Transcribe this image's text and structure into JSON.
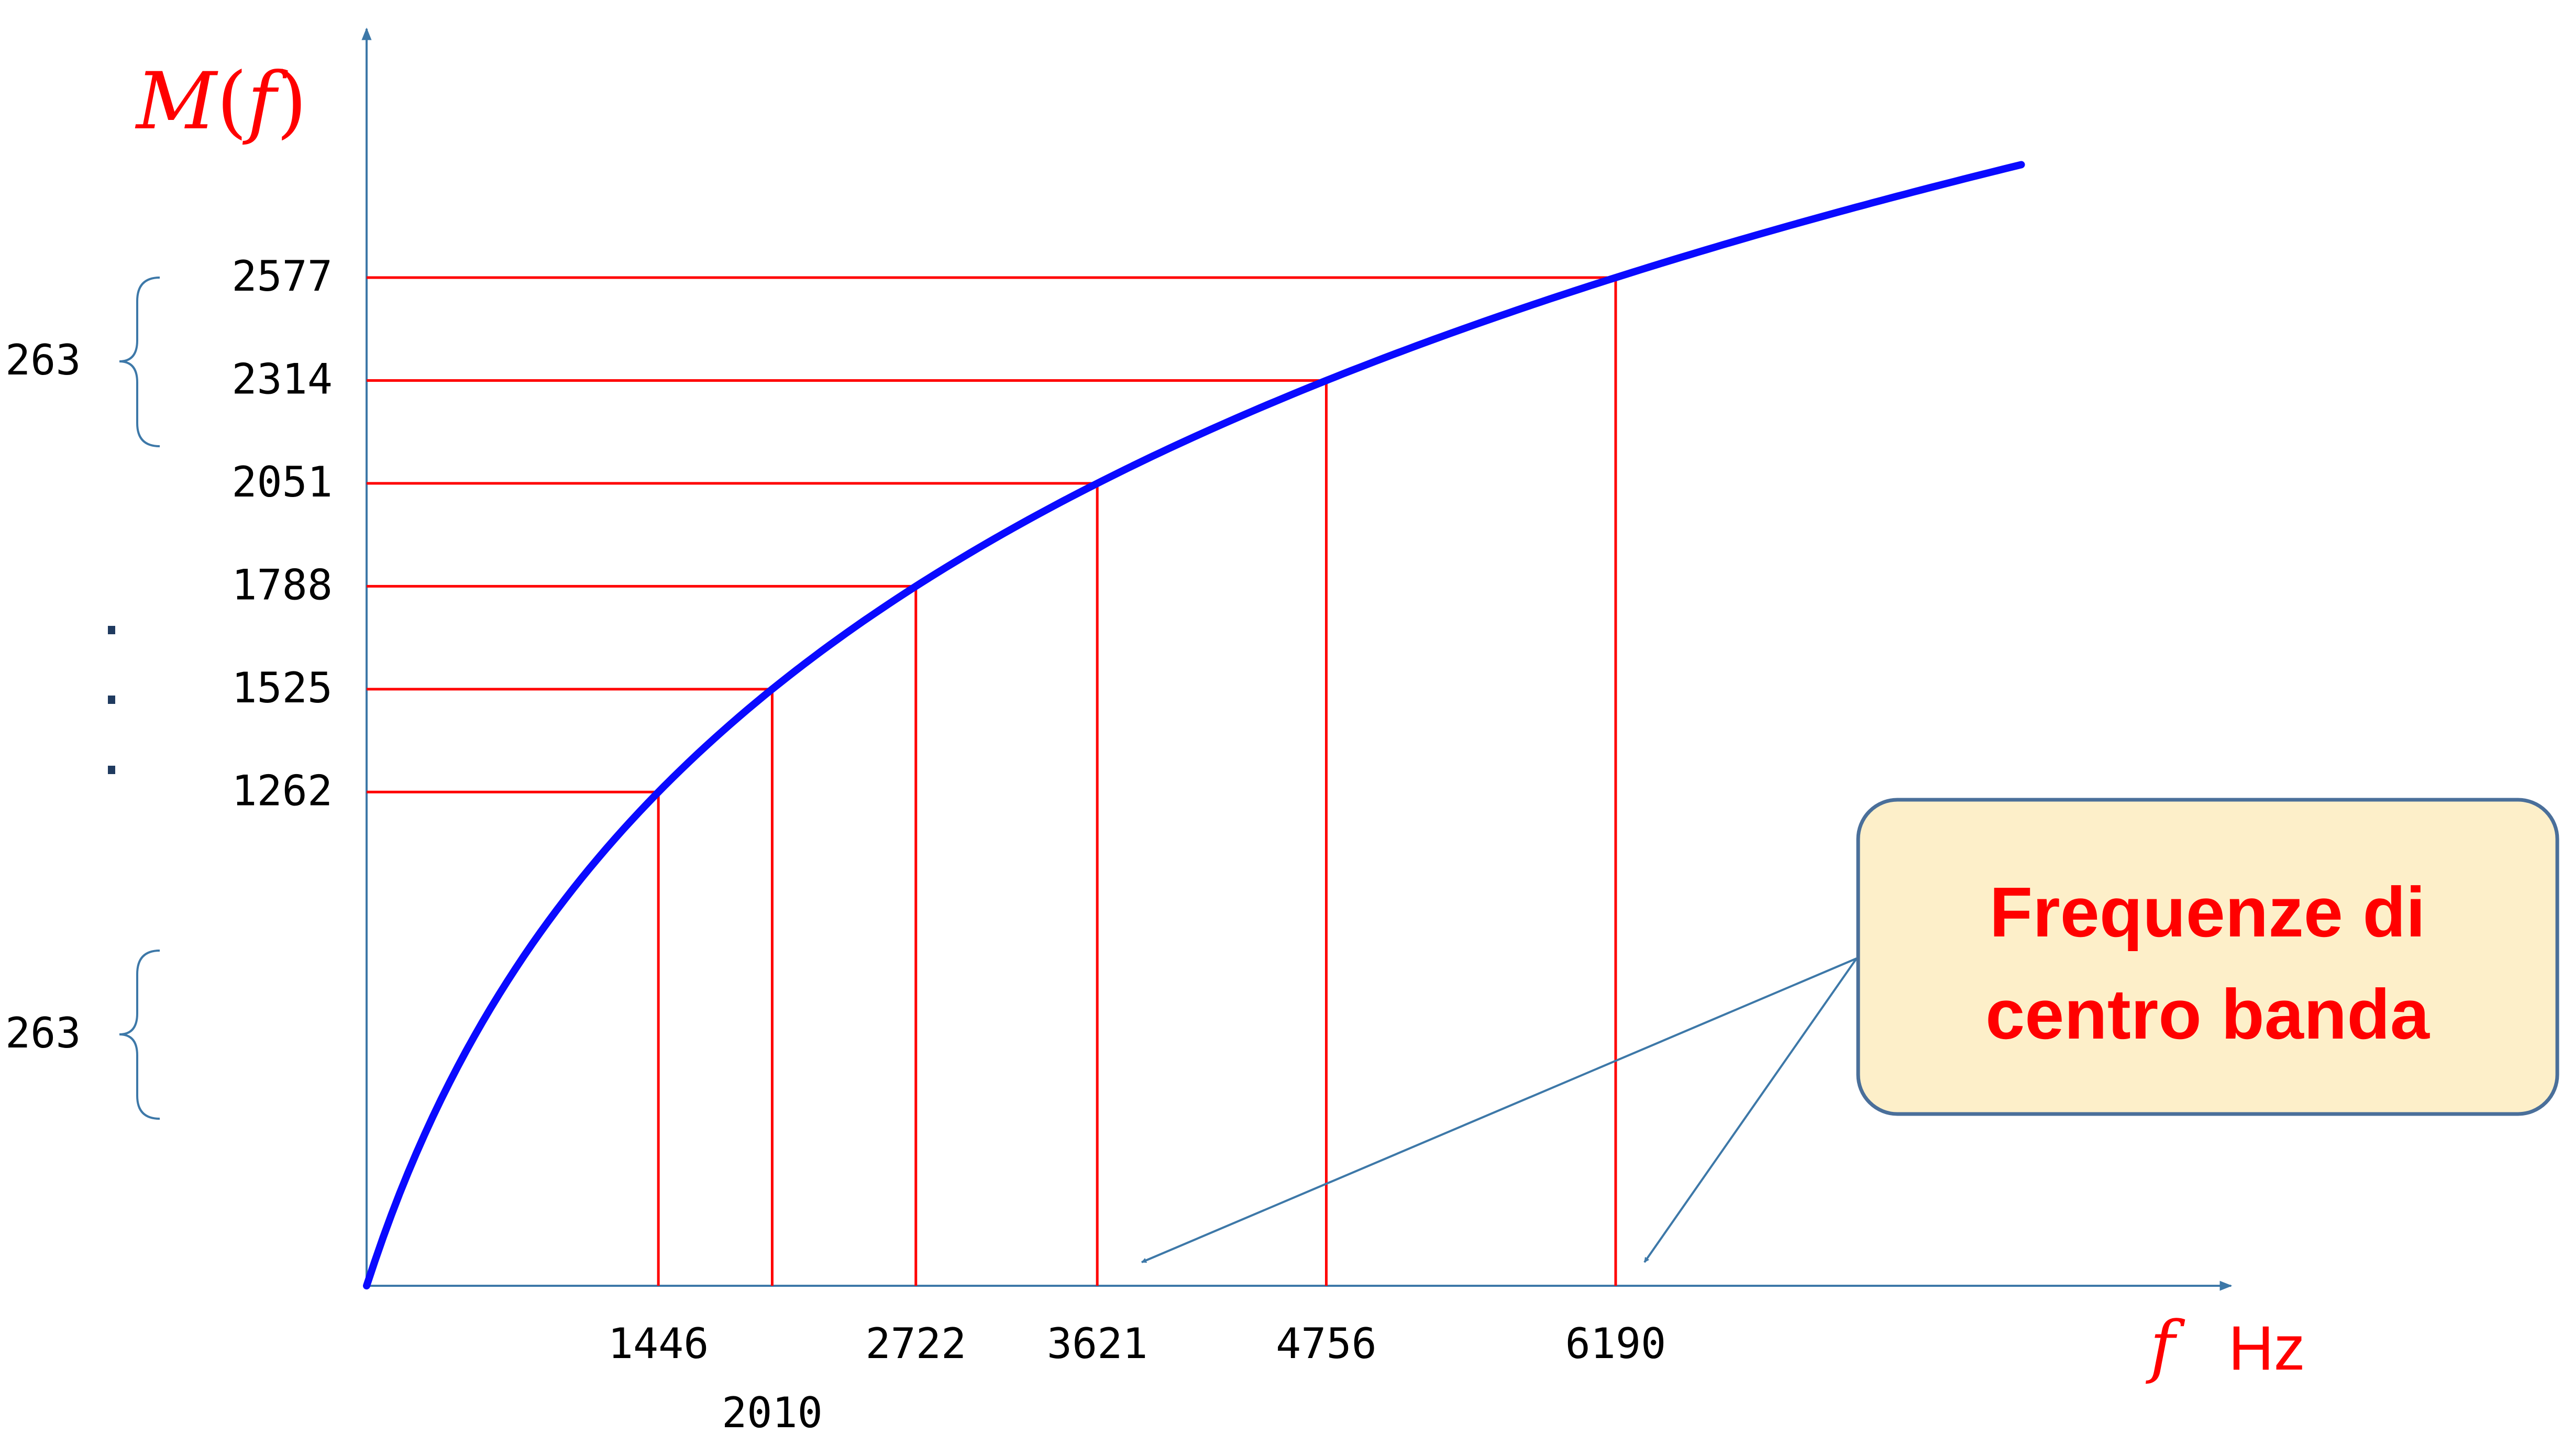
{
  "chart_data": {
    "type": "line",
    "title": "",
    "xlabel_symbol": "f",
    "xlabel_unit": "Hz",
    "ylabel": "M(f)",
    "ylabel_symbol": "M",
    "ylabel_arg": "f",
    "y_ticks": [
      1262,
      1525,
      1788,
      2051,
      2314,
      2577
    ],
    "x_ticks_upper": [
      1446,
      2722,
      3621,
      4756,
      6190
    ],
    "x_ticks_lower": [
      2010
    ],
    "points": [
      {
        "x": 1446,
        "y": 1262
      },
      {
        "x": 2010,
        "y": 1525
      },
      {
        "x": 2722,
        "y": 1788
      },
      {
        "x": 3621,
        "y": 2051
      },
      {
        "x": 4756,
        "y": 2314
      },
      {
        "x": 6190,
        "y": 2577
      }
    ],
    "brace_labels": [
      "263",
      "263"
    ],
    "callout": {
      "line1": "Frequenze di",
      "line2": "centro banda"
    },
    "colors": {
      "curve": "#0a0aff",
      "guides": "#ff0000",
      "axes": "#3d78a8",
      "label_red": "#ff0000",
      "callout_bg": "#fdefc9",
      "callout_border": "#4a6f9a"
    }
  }
}
